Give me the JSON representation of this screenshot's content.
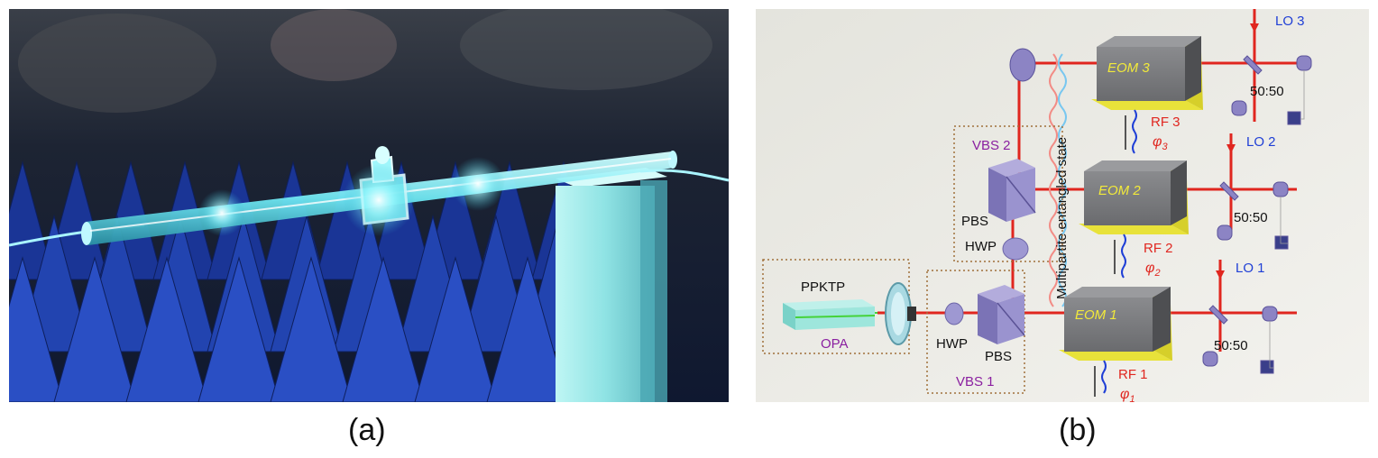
{
  "captions": {
    "a": "(a)",
    "b": "(b)"
  },
  "diagram": {
    "multipartite_label": "Multipartite entangled state",
    "vbs2": "VBS 2",
    "vbs1": "VBS 1",
    "pbs_top": "PBS",
    "hwp_top": "HWP",
    "ppktp": "PPKTP",
    "opa": "OPA",
    "hwp_bottom": "HWP",
    "pbs_bottom": "PBS",
    "eom3": "EOM 3",
    "eom2": "EOM 2",
    "eom1": "EOM 1",
    "rf3": "RF 3",
    "rf2": "RF 2",
    "rf1": "RF 1",
    "phi3": "φ",
    "phi3_sub": "3",
    "phi2": "φ",
    "phi2_sub": "2",
    "phi1": "φ",
    "phi1_sub": "1",
    "lo3": "LO 3",
    "lo2": "LO 2",
    "lo1": "LO 1",
    "bs3": "50:50",
    "bs2": "50:50",
    "bs1": "50:50"
  },
  "colors": {
    "beam": "#e0261f",
    "lo_label": "#1f3fd6",
    "rf_label": "#e0261f",
    "vbs_label": "#8a1fa0",
    "eom_body": "#5e5f62",
    "eom_base": "#e8e23a",
    "eom_text": "#f2ea3a",
    "photo_bg": "#1a1f2a",
    "glow": "#7ff6ff"
  }
}
